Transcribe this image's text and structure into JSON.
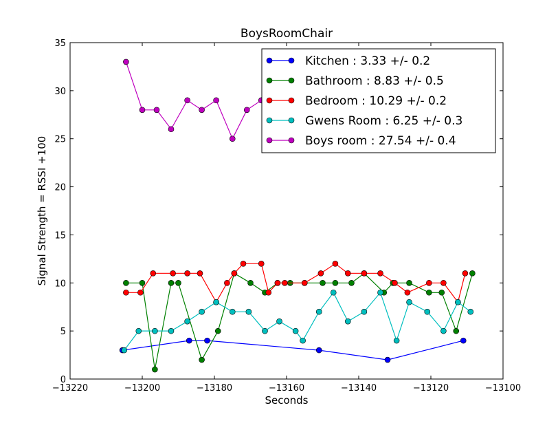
{
  "chart_data": {
    "type": "line",
    "title": "BoysRoomChair",
    "xlabel": "Seconds",
    "ylabel": "Signal Strength  = RSSI +100",
    "xlim": [
      -13220,
      -13100
    ],
    "ylim": [
      0,
      35
    ],
    "xticks": [
      -13220,
      -13200,
      -13180,
      -13160,
      -13140,
      -13120,
      -13100
    ],
    "xtick_labels": [
      "−13220",
      "−13200",
      "−13180",
      "−13160",
      "−13140",
      "−13120",
      "−13100"
    ],
    "yticks": [
      0,
      5,
      10,
      15,
      20,
      25,
      30,
      35
    ],
    "ytick_labels": [
      "0",
      "5",
      "10",
      "15",
      "20",
      "25",
      "30",
      "35"
    ],
    "grid": false,
    "legend_position": "top-right",
    "series": [
      {
        "name": "Kitchen : 3.33 +/- 0.2",
        "color": "#0000ff",
        "points": [
          [
            -13205.5,
            3
          ],
          [
            -13187,
            4
          ],
          [
            -13182,
            4
          ],
          [
            -13151,
            3
          ],
          [
            -13132,
            2
          ],
          [
            -13111,
            4
          ]
        ]
      },
      {
        "name": "Bathroom : 8.83 +/- 0.5",
        "color": "#008000",
        "points": [
          [
            -13204.5,
            10
          ],
          [
            -13200,
            10
          ],
          [
            -13196.5,
            1
          ],
          [
            -13192,
            10
          ],
          [
            -13190,
            10
          ],
          [
            -13183.5,
            2
          ],
          [
            -13179,
            5
          ],
          [
            -13174.5,
            11
          ],
          [
            -13170,
            10
          ],
          [
            -13166,
            9
          ],
          [
            -13162.5,
            10
          ],
          [
            -13159,
            10
          ],
          [
            -13155,
            10
          ],
          [
            -13150,
            10
          ],
          [
            -13146.5,
            10
          ],
          [
            -13142,
            10
          ],
          [
            -13138.5,
            11
          ],
          [
            -13133,
            9
          ],
          [
            -13130.5,
            10
          ],
          [
            -13126,
            10
          ],
          [
            -13120.5,
            9
          ],
          [
            -13117,
            9
          ],
          [
            -13113,
            5
          ],
          [
            -13108.5,
            11
          ]
        ]
      },
      {
        "name": "Bedroom : 10.29 +/- 0.2",
        "color": "#ff0000",
        "points": [
          [
            -13204.5,
            9
          ],
          [
            -13200.5,
            9
          ],
          [
            -13197,
            11
          ],
          [
            -13191.5,
            11
          ],
          [
            -13187.5,
            11
          ],
          [
            -13184,
            11
          ],
          [
            -13179.5,
            8
          ],
          [
            -13176.5,
            10
          ],
          [
            -13174.5,
            11
          ],
          [
            -13172,
            12
          ],
          [
            -13167,
            12
          ],
          [
            -13165,
            9
          ],
          [
            -13162.5,
            10
          ],
          [
            -13160.5,
            10
          ],
          [
            -13155,
            10
          ],
          [
            -13150.5,
            11
          ],
          [
            -13146.5,
            12
          ],
          [
            -13143,
            11
          ],
          [
            -13138.5,
            11
          ],
          [
            -13134,
            11
          ],
          [
            -13130,
            10
          ],
          [
            -13126.5,
            9
          ],
          [
            -13120.5,
            10
          ],
          [
            -13116.5,
            10
          ],
          [
            -13112.5,
            8
          ],
          [
            -13110.5,
            11
          ]
        ]
      },
      {
        "name": "Gwens Room : 6.25 +/- 0.3",
        "color": "#00bfbf",
        "points": [
          [
            -13205,
            3
          ],
          [
            -13201,
            5
          ],
          [
            -13196.5,
            5
          ],
          [
            -13192,
            5
          ],
          [
            -13187.5,
            6
          ],
          [
            -13183.5,
            7
          ],
          [
            -13179.5,
            8
          ],
          [
            -13175,
            7
          ],
          [
            -13170.5,
            7
          ],
          [
            -13166,
            5
          ],
          [
            -13162,
            6
          ],
          [
            -13157.5,
            5
          ],
          [
            -13155.5,
            4
          ],
          [
            -13151,
            7
          ],
          [
            -13147,
            9
          ],
          [
            -13143,
            6
          ],
          [
            -13138.5,
            7
          ],
          [
            -13134,
            9
          ],
          [
            -13129.5,
            4
          ],
          [
            -13126,
            8
          ],
          [
            -13121,
            7
          ],
          [
            -13116.5,
            5
          ],
          [
            -13112.5,
            8
          ],
          [
            -13109,
            7
          ]
        ]
      },
      {
        "name": "Boys room : 27.54 +/- 0.4",
        "color": "#bf00bf",
        "points": [
          [
            -13204.5,
            33
          ],
          [
            -13200,
            28
          ],
          [
            -13196,
            28
          ],
          [
            -13192,
            26
          ],
          [
            -13187.5,
            29
          ],
          [
            -13183.5,
            28
          ],
          [
            -13179.5,
            29
          ],
          [
            -13175,
            25
          ],
          [
            -13171,
            28
          ],
          [
            -13167,
            29
          ],
          [
            -13165,
            29
          ]
        ]
      }
    ]
  }
}
